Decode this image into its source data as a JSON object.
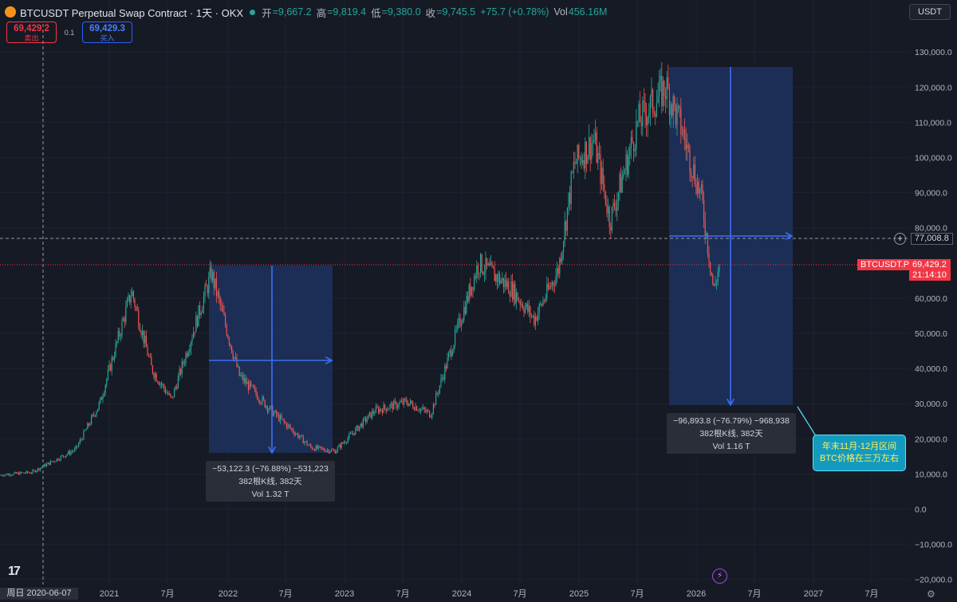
{
  "header": {
    "coin_icon": "₿",
    "title": "BTCUSDT Perpetual Swap Contract · 1天 · OKX",
    "open_label": "开",
    "open": "=9,667.2",
    "high_label": "高",
    "high": "=9,819.4",
    "low_label": "低",
    "low": "=9,380.0",
    "close_label": "收",
    "close": "=9,745.5",
    "change": "+75.7 (+0.78%)",
    "vol_label": "Vol",
    "vol": "456.16M"
  },
  "trade": {
    "sell_price": "69,429.2",
    "sell_label": "卖出",
    "spread": "0.1",
    "buy_price": "69,429.3",
    "buy_label": "买入"
  },
  "currency": "USDT",
  "price_axis": {
    "ticks": [
      "130,000.0",
      "120,000.0",
      "110,000.0",
      "100,000.0",
      "90,000.0",
      "80,000.0",
      "60,000.0",
      "50,000.0",
      "40,000.0",
      "30,000.0",
      "20,000.0",
      "10,000.0",
      "0.0",
      "−10,000.0",
      "−20,000.0"
    ],
    "crosshair_price": "77,008.8",
    "symbol_label": "BTCUSDT.P",
    "last_price": "69,429.2",
    "countdown": "21:14:10"
  },
  "time_axis": {
    "cursor_date": "周日 2020-06-07",
    "labels": [
      "2021",
      "7月",
      "2022",
      "7月",
      "2023",
      "7月",
      "2024",
      "7月",
      "2025",
      "7月",
      "2026",
      "7月",
      "2027",
      "7月"
    ]
  },
  "measure1": {
    "line1": "−53,122.3 (−76.88%) −531,223",
    "line2": "382根K线, 382天",
    "line3": "Vol 1.32 T"
  },
  "measure2": {
    "line1": "−96,893.8 (−76.79%) −968,938",
    "line2": "382根K线, 382天",
    "line3": "Vol 1.16 T"
  },
  "callout": {
    "line1": "年末11月-12月区间",
    "line2": "BTC价格在三万左右"
  },
  "icons": {
    "tv_logo": "17",
    "flash": "⚡",
    "gear": "⚙",
    "plus": "+"
  },
  "colors": {
    "background": "#161a25",
    "up": "#26a69a",
    "down": "#ef5350",
    "measure_fill": "#1f3566",
    "measure_line": "#3d6ff5",
    "last_price": "#f23645"
  },
  "chart_data": {
    "type": "candlestick",
    "x": [
      "2020-06",
      "2020-09",
      "2020-12",
      "2021-01",
      "2021-04",
      "2021-07",
      "2021-11",
      "2022-06",
      "2022-11",
      "2023-03",
      "2023-07",
      "2023-10",
      "2024-03",
      "2024-08",
      "2024-12",
      "2025-04",
      "2025-08",
      "2025-10",
      "2026-01",
      "2026-02"
    ],
    "close": [
      9700,
      10500,
      26000,
      35000,
      60000,
      33000,
      67000,
      20000,
      16500,
      28000,
      30500,
      27000,
      70000,
      58000,
      100000,
      80000,
      118000,
      120000,
      90000,
      69429
    ],
    "ylim": [
      -20000,
      132000
    ],
    "grid": true
  }
}
